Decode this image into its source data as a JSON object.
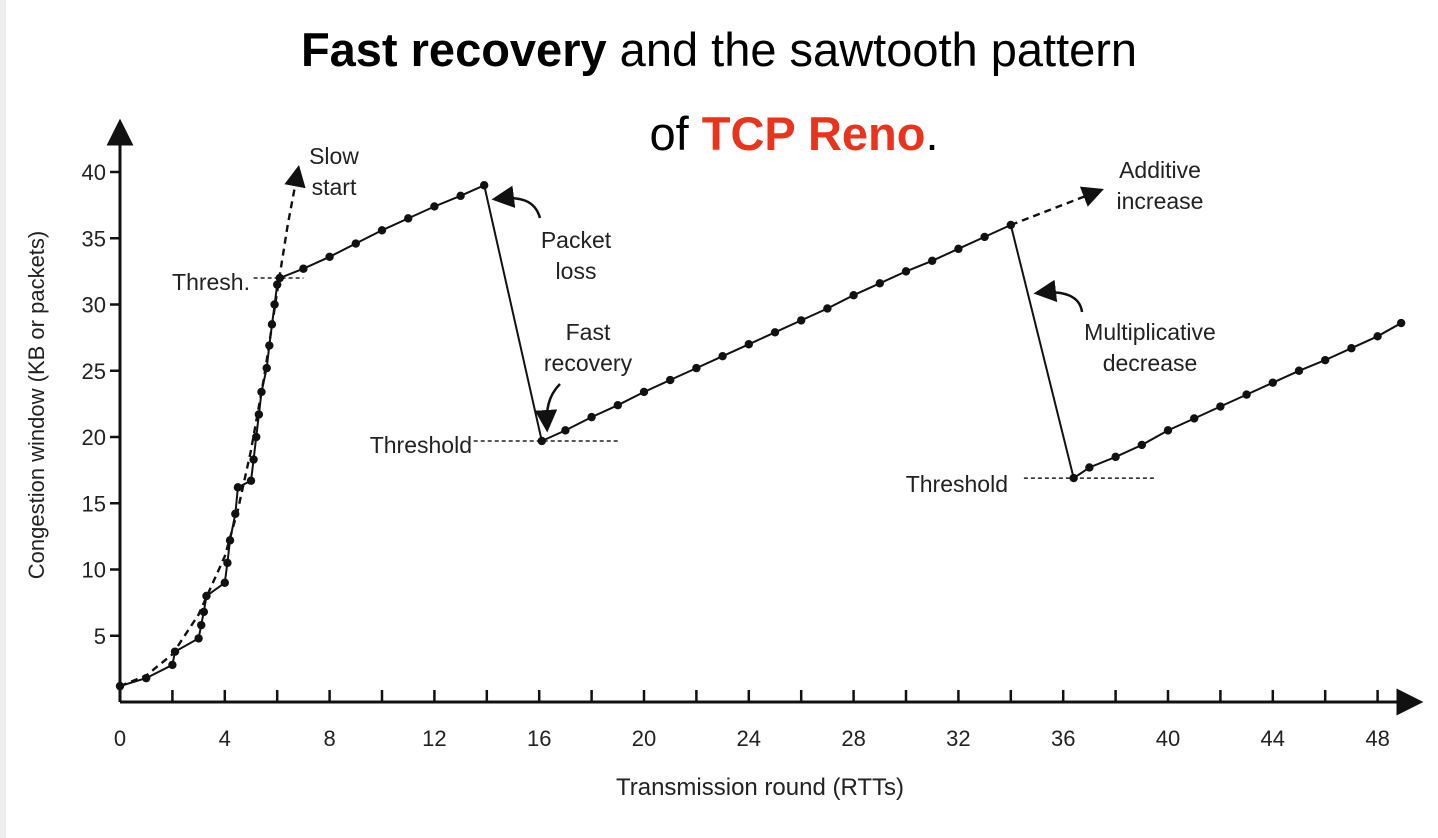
{
  "title": {
    "line1_bold": "Fast recovery",
    "line1_rest": " and the sawtooth pattern",
    "line2_prefix": "of ",
    "line2_red": "TCP Reno",
    "line2_suffix": ".",
    "accent_color": "#e8341c"
  },
  "chart_data": {
    "type": "line",
    "xlabel": "Transmission round (RTTs)",
    "ylabel": "Congestion window  (KB or packets)",
    "xlim": [
      0,
      49
    ],
    "ylim": [
      0,
      42
    ],
    "xticks": [
      0,
      4,
      8,
      12,
      16,
      20,
      24,
      28,
      32,
      36,
      40,
      44,
      48
    ],
    "yticks": [
      5,
      10,
      15,
      20,
      25,
      30,
      35,
      40
    ],
    "grid": false,
    "series": [
      {
        "style": "solid-with-markers",
        "points": [
          [
            0,
            1.2
          ],
          [
            1,
            1.8
          ],
          [
            2,
            2.8
          ],
          [
            2.1,
            3.8
          ],
          [
            3,
            4.8
          ],
          [
            3.1,
            5.8
          ],
          [
            3.2,
            6.8
          ],
          [
            3.3,
            8
          ],
          [
            4,
            9
          ],
          [
            4.1,
            10.5
          ],
          [
            4.2,
            12.2
          ],
          [
            4.4,
            14.2
          ],
          [
            4.5,
            16.2
          ],
          [
            5,
            16.7
          ],
          [
            5.1,
            18.3
          ],
          [
            5.2,
            20
          ],
          [
            5.3,
            21.7
          ],
          [
            5.4,
            23.4
          ],
          [
            5.6,
            25.2
          ],
          [
            5.7,
            26.9
          ],
          [
            5.8,
            28.5
          ],
          [
            5.9,
            30
          ],
          [
            6,
            31.5
          ],
          [
            6.1,
            32
          ],
          [
            7,
            32.7
          ],
          [
            8,
            33.6
          ],
          [
            9,
            34.6
          ],
          [
            10,
            35.6
          ],
          [
            11,
            36.5
          ],
          [
            12,
            37.4
          ],
          [
            13,
            38.2
          ],
          [
            13.9,
            39
          ],
          [
            16.1,
            19.7
          ],
          [
            17,
            20.5
          ],
          [
            18,
            21.5
          ],
          [
            19,
            22.4
          ],
          [
            20,
            23.4
          ],
          [
            21,
            24.3
          ],
          [
            22,
            25.2
          ],
          [
            23,
            26.1
          ],
          [
            24,
            27
          ],
          [
            25,
            27.9
          ],
          [
            26,
            28.8
          ],
          [
            27,
            29.7
          ],
          [
            28,
            30.7
          ],
          [
            29,
            31.6
          ],
          [
            30,
            32.5
          ],
          [
            31,
            33.3
          ],
          [
            32,
            34.2
          ],
          [
            33,
            35.1
          ],
          [
            34,
            36
          ],
          [
            36.4,
            16.9
          ],
          [
            37,
            17.7
          ],
          [
            38,
            18.5
          ],
          [
            39,
            19.4
          ],
          [
            40,
            20.5
          ],
          [
            41,
            21.4
          ],
          [
            42,
            22.3
          ],
          [
            43,
            23.2
          ],
          [
            44,
            24.1
          ],
          [
            45,
            25
          ],
          [
            46,
            25.8
          ],
          [
            47,
            26.7
          ],
          [
            48,
            27.6
          ],
          [
            48.9,
            28.6
          ]
        ]
      },
      {
        "style": "dashed-slow-start",
        "points": [
          [
            0,
            1.2
          ],
          [
            1,
            2
          ],
          [
            2,
            3.6
          ],
          [
            3,
            6.6
          ],
          [
            4,
            11
          ],
          [
            4.5,
            14.5
          ],
          [
            5,
            19
          ],
          [
            5.5,
            24.5
          ],
          [
            6,
            31
          ],
          [
            6.4,
            36
          ],
          [
            6.8,
            40.2
          ]
        ]
      },
      {
        "style": "dashed-additive-increase",
        "points": [
          [
            34,
            36
          ],
          [
            37.4,
            38.6
          ]
        ]
      }
    ],
    "thresholds": [
      {
        "label": "Thresh.",
        "y": 32,
        "x_from": 5.1,
        "x_to": 7
      },
      {
        "label": "Threshold",
        "y": 19.7,
        "x_from": 13.5,
        "x_to": 19
      },
      {
        "label": "Threshold",
        "y": 16.9,
        "x_from": 34.5,
        "x_to": 39.5
      }
    ],
    "annotations": [
      {
        "lines": [
          "Slow",
          "start"
        ]
      },
      {
        "lines": [
          "Packet",
          "loss"
        ]
      },
      {
        "lines": [
          "Fast",
          "recovery"
        ]
      },
      {
        "lines": [
          "Additive",
          "increase"
        ]
      },
      {
        "lines": [
          "Multiplicative",
          "decrease"
        ]
      }
    ]
  }
}
